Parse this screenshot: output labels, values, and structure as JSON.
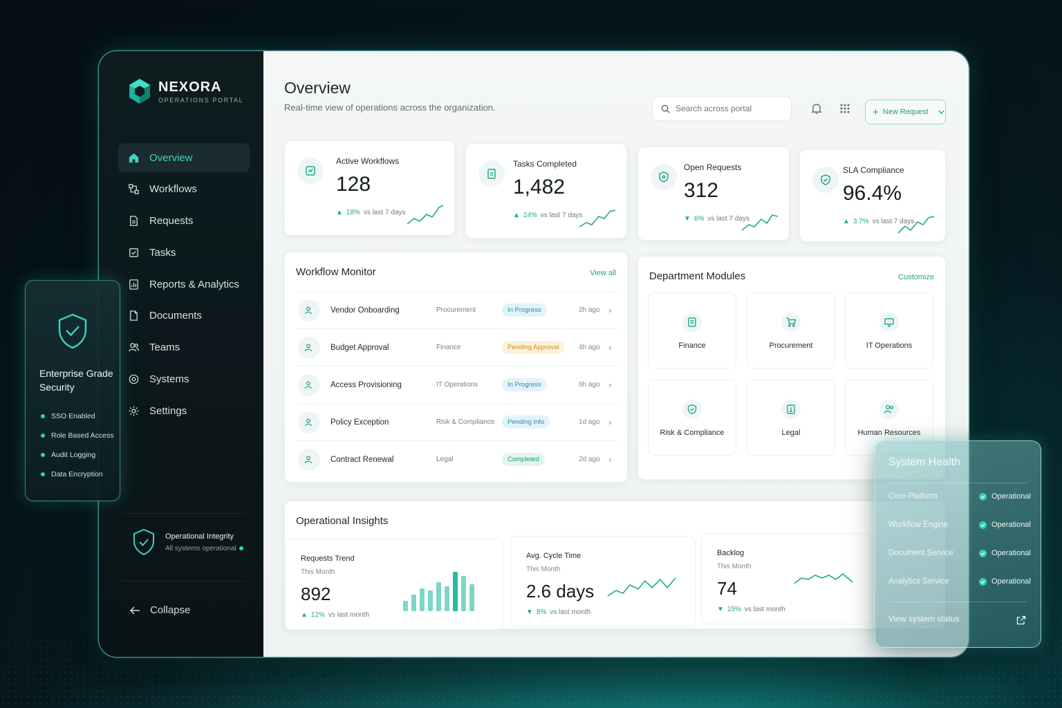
{
  "brand": {
    "name": "NEXORA",
    "sub": "OPERATIONS PORTAL"
  },
  "nav": [
    {
      "label": "Overview",
      "icon": "home-icon",
      "active": true
    },
    {
      "label": "Workflows",
      "icon": "workflow-icon"
    },
    {
      "label": "Requests",
      "icon": "document-icon"
    },
    {
      "label": "Tasks",
      "icon": "task-icon"
    },
    {
      "label": "Reports & Analytics",
      "icon": "chart-icon"
    },
    {
      "label": "Documents",
      "icon": "file-icon"
    },
    {
      "label": "Teams",
      "icon": "users-icon"
    },
    {
      "label": "Systems",
      "icon": "systems-icon"
    },
    {
      "label": "Settings",
      "icon": "gear-icon"
    }
  ],
  "integrity": {
    "title": "Operational Integrity",
    "sub": "All systems operational"
  },
  "collapse_label": "Collapse",
  "header": {
    "title": "Overview",
    "subtitle": "Real-time view of operations across the organization.",
    "search_placeholder": "Search across portal",
    "new_request": "New Request"
  },
  "stats": [
    {
      "label": "Active Workflows",
      "value": "128",
      "delta": "18%",
      "delta_text": "vs last 7 days",
      "direction": "up"
    },
    {
      "label": "Tasks Completed",
      "value": "1,482",
      "delta": "24%",
      "delta_text": "vs last 7 days",
      "direction": "up"
    },
    {
      "label": "Open Requests",
      "value": "312",
      "delta": "6%",
      "delta_text": "vs last 7 days",
      "direction": "down"
    },
    {
      "label": "SLA Compliance",
      "value": "96.4%",
      "delta": "3.7%",
      "delta_text": "vs last 7 days",
      "direction": "up"
    }
  ],
  "workflow_monitor": {
    "title": "Workflow Monitor",
    "link": "View all",
    "rows": [
      {
        "name": "Vendor Onboarding",
        "dept": "Procurement",
        "status": "In Progress",
        "tone": "teal",
        "time": "2h ago"
      },
      {
        "name": "Budget Approval",
        "dept": "Finance",
        "status": "Pending Approval",
        "tone": "amber",
        "time": "4h ago"
      },
      {
        "name": "Access Provisioning",
        "dept": "IT Operations",
        "status": "In Progress",
        "tone": "teal",
        "time": "6h ago"
      },
      {
        "name": "Policy Exception",
        "dept": "Risk & Compliance",
        "status": "Pending Info",
        "tone": "teal",
        "time": "1d ago"
      },
      {
        "name": "Contract Renewal",
        "dept": "Legal",
        "status": "Completed",
        "tone": "green",
        "time": "2d ago"
      }
    ]
  },
  "modules": {
    "title": "Department Modules",
    "link": "Customize",
    "items": [
      {
        "label": "Finance",
        "icon": "finance-icon"
      },
      {
        "label": "Procurement",
        "icon": "cart-icon"
      },
      {
        "label": "IT Operations",
        "icon": "monitor-icon"
      },
      {
        "label": "Risk & Compliance",
        "icon": "shield-icon"
      },
      {
        "label": "Legal",
        "icon": "legal-icon"
      },
      {
        "label": "Human Resources",
        "icon": "people-icon"
      }
    ]
  },
  "insights": {
    "title": "Operational Insights",
    "cards": [
      {
        "title": "Requests Trend",
        "sub": "This Month",
        "value": "892",
        "delta": "12%",
        "delta_text": "vs last month",
        "direction": "up"
      },
      {
        "title": "Avg. Cycle Time",
        "sub": "This Month",
        "value": "2.6 days",
        "delta": "8%",
        "delta_text": "vs last month",
        "direction": "down"
      },
      {
        "title": "Backlog",
        "sub": "This Month",
        "value": "74",
        "delta": "15%",
        "delta_text": "vs last month",
        "direction": "down"
      }
    ],
    "bar_values": [
      0.25,
      0.4,
      0.55,
      0.5,
      0.7,
      0.6,
      0.95,
      0.85,
      0.65
    ]
  },
  "security": {
    "title": "Enterprise Grade Security",
    "items": [
      "SSO Enabled",
      "Role Based Access",
      "Audit Logging",
      "Data Encryption"
    ]
  },
  "health": {
    "title": "System Health",
    "rows": [
      {
        "name": "Core Platform",
        "status": "Operational"
      },
      {
        "name": "Workflow Engine",
        "status": "Operational"
      },
      {
        "name": "Document Service",
        "status": "Operational"
      },
      {
        "name": "Analytics Service",
        "status": "Operational"
      }
    ],
    "link": "View system status"
  },
  "colors": {
    "accent": "#1fa88f",
    "brand": "#2ed3b7",
    "sidebar": "#0e1c1f"
  }
}
